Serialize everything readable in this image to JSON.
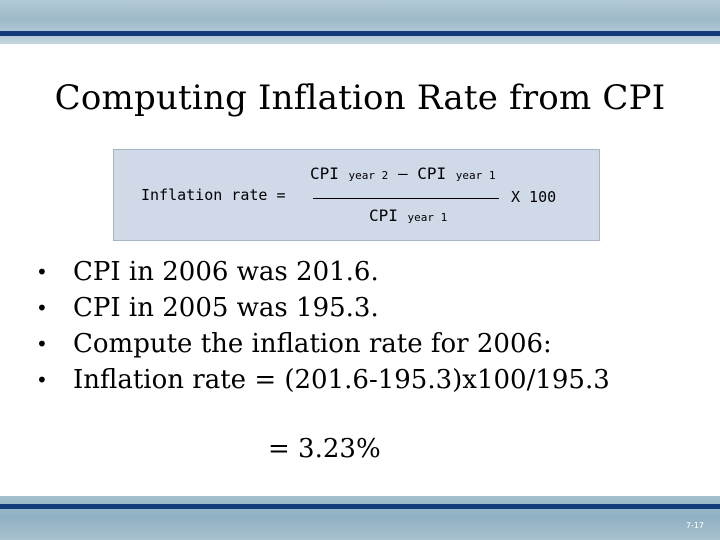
{
  "slide": {
    "title": "Computing Inflation Rate from CPI",
    "page_number": "7-17"
  },
  "formula": {
    "lhs": "Inflation rate =",
    "num_cpi_a": "CPI",
    "num_sub_a": "year 2",
    "num_minus": "–",
    "num_cpi_b": "CPI",
    "num_sub_b": "year 1",
    "den_cpi": "CPI",
    "den_sub": "year 1",
    "multiplier": "X 100"
  },
  "bullets": [
    "CPI in 2006 was 201.6.",
    "CPI in 2005 was 195.3.",
    "Compute the inflation rate for 2006:",
    "Inflation rate = (201.6-195.3)x100/195.3"
  ],
  "bullet_glyph": "•",
  "result": "= 3.23%",
  "colors": {
    "band": "#9db8c8",
    "stripe": "#153b7a",
    "formula_box": "#cfd9e8"
  }
}
